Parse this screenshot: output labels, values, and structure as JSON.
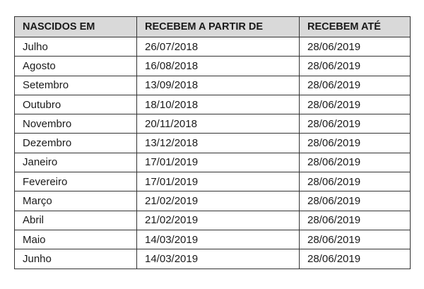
{
  "table": {
    "headers": [
      "NASCIDOS EM",
      "RECEBEM A PARTIR DE",
      "RECEBEM ATÉ"
    ],
    "rows": [
      [
        "Julho",
        "26/07/2018",
        "28/06/2019"
      ],
      [
        "Agosto",
        "16/08/2018",
        "28/06/2019"
      ],
      [
        "Setembro",
        "13/09/2018",
        "28/06/2019"
      ],
      [
        "Outubro",
        "18/10/2018",
        "28/06/2019"
      ],
      [
        "Novembro",
        "20/11/2018",
        "28/06/2019"
      ],
      [
        "Dezembro",
        "13/12/2018",
        "28/06/2019"
      ],
      [
        "Janeiro",
        "17/01/2019",
        "28/06/2019"
      ],
      [
        "Fevereiro",
        "17/01/2019",
        "28/06/2019"
      ],
      [
        "Março",
        "21/02/2019",
        "28/06/2019"
      ],
      [
        "Abril",
        "21/02/2019",
        "28/06/2019"
      ],
      [
        "Maio",
        "14/03/2019",
        "28/06/2019"
      ],
      [
        "Junho",
        "14/03/2019",
        "28/06/2019"
      ]
    ]
  },
  "colors": {
    "header_bg": "#d9d9d9",
    "border": "#333333"
  }
}
